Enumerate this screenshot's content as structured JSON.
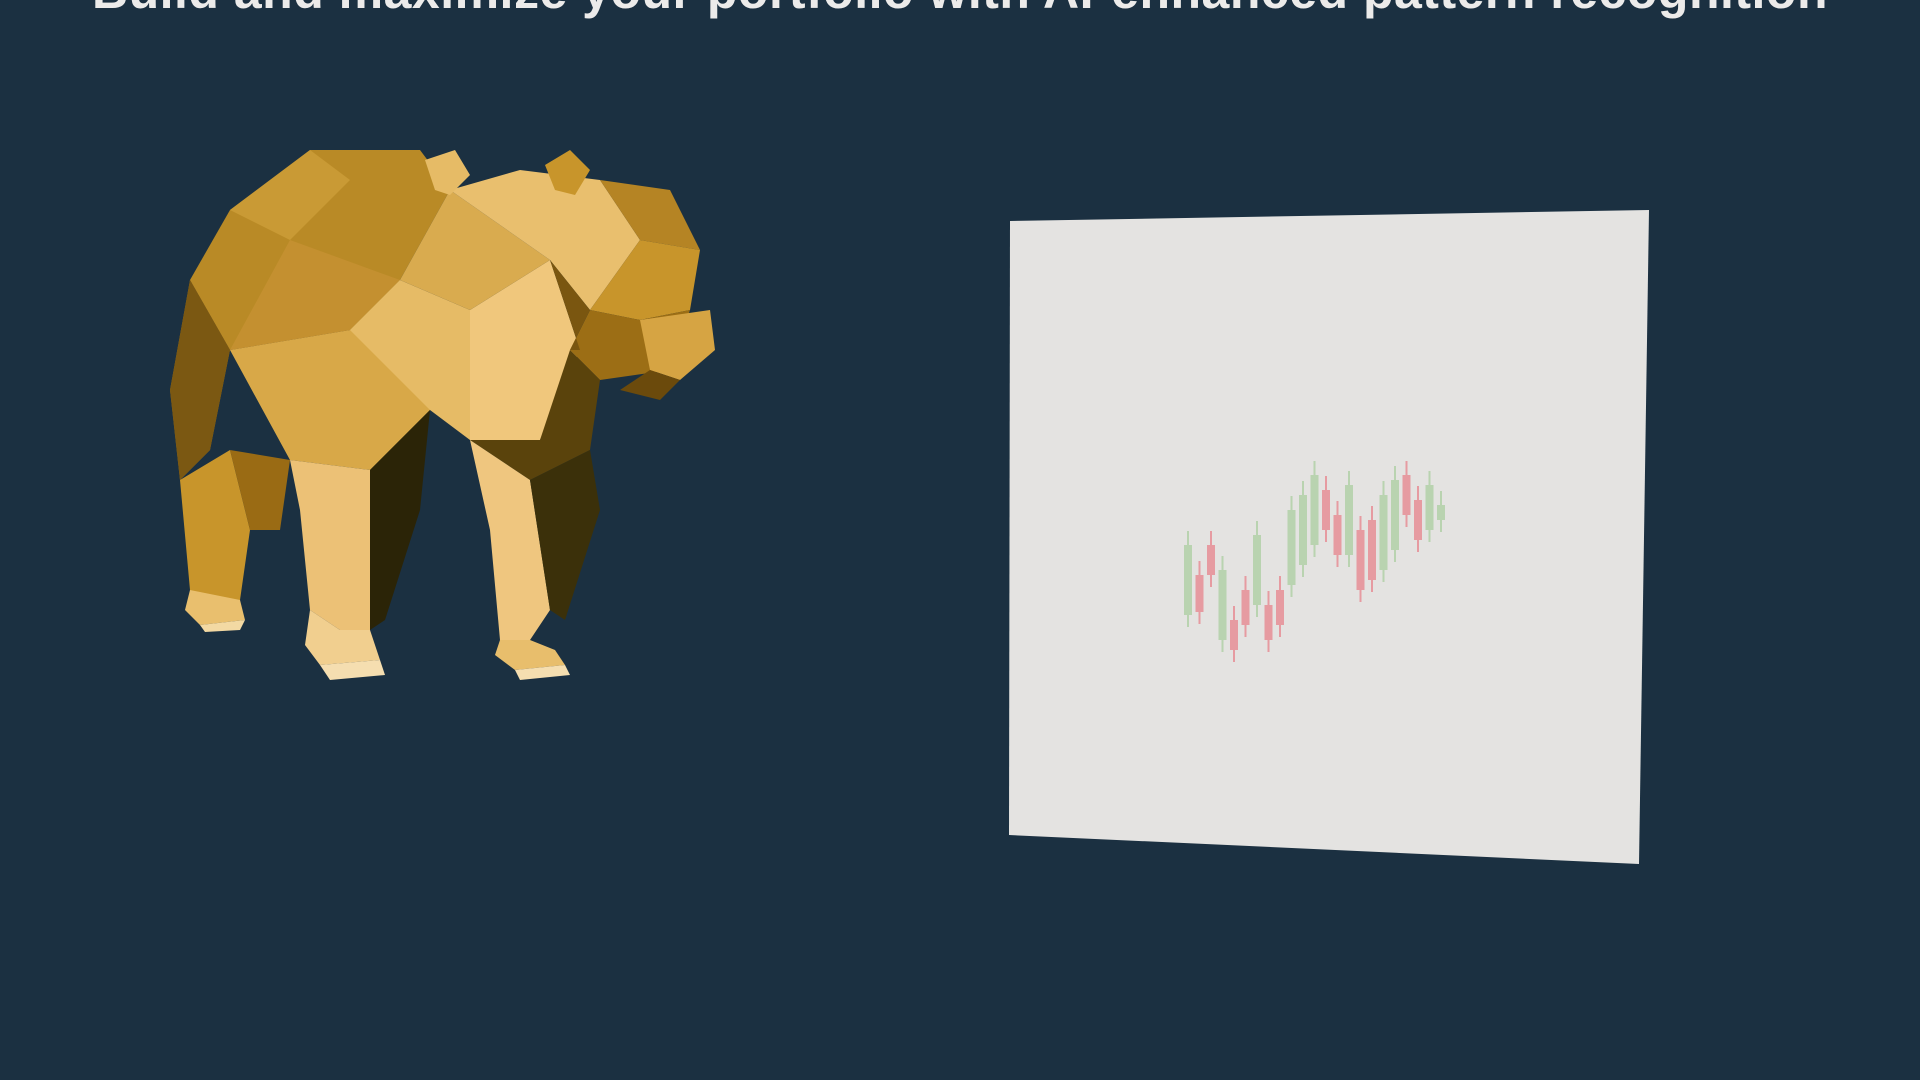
{
  "headline": "Build and maximize your portfolio with AI-enhanced pattern recognition",
  "colors": {
    "background": "#1b3041",
    "bear_gold": "#c8952b",
    "panel": "#e4e3e1",
    "candle_up": "#b9d3b0",
    "candle_down": "#e69ba1"
  },
  "icons": [
    "bear-icon",
    "candlestick-chart-icon"
  ],
  "chart_data": {
    "type": "candlestick",
    "candles": [
      {
        "dir": "up"
      },
      {
        "dir": "down"
      },
      {
        "dir": "down"
      },
      {
        "dir": "up"
      },
      {
        "dir": "down"
      },
      {
        "dir": "down"
      },
      {
        "dir": "up"
      },
      {
        "dir": "down"
      },
      {
        "dir": "down"
      },
      {
        "dir": "up"
      },
      {
        "dir": "up"
      },
      {
        "dir": "up"
      },
      {
        "dir": "down"
      },
      {
        "dir": "down"
      },
      {
        "dir": "up"
      },
      {
        "dir": "down"
      },
      {
        "dir": "down"
      },
      {
        "dir": "up"
      },
      {
        "dir": "up"
      },
      {
        "dir": "down"
      },
      {
        "dir": "down"
      },
      {
        "dir": "up"
      },
      {
        "dir": "up"
      }
    ]
  }
}
